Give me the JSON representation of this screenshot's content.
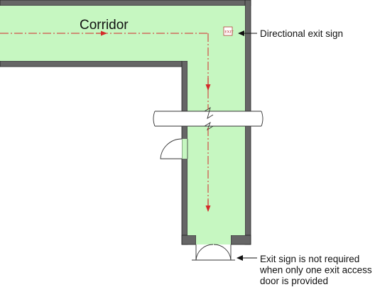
{
  "diagram": {
    "corridor_label": "Corridor",
    "exit_sign_text": "EXIT",
    "annotations": [
      {
        "id": "directional-exit-sign",
        "lines": [
          "Directional exit sign"
        ]
      },
      {
        "id": "exit-sign-not-required",
        "lines": [
          "Exit sign is not required",
          "when only one exit access",
          "door is provided"
        ]
      }
    ]
  },
  "colors": {
    "floor": "#c6f7c1",
    "wall": "#666666",
    "wall_outline": "#222222",
    "path": "#d42a2a",
    "text": "#111111"
  }
}
